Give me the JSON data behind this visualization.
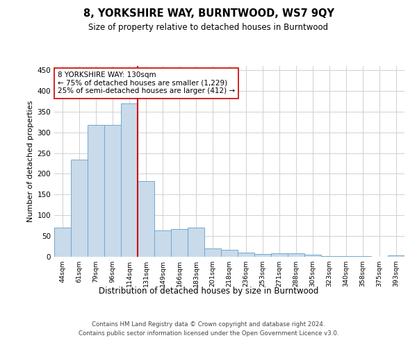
{
  "title1": "8, YORKSHIRE WAY, BURNTWOOD, WS7 9QY",
  "title2": "Size of property relative to detached houses in Burntwood",
  "xlabel": "Distribution of detached houses by size in Burntwood",
  "ylabel": "Number of detached properties",
  "categories": [
    "44sqm",
    "61sqm",
    "79sqm",
    "96sqm",
    "114sqm",
    "131sqm",
    "149sqm",
    "166sqm",
    "183sqm",
    "201sqm",
    "218sqm",
    "236sqm",
    "253sqm",
    "271sqm",
    "288sqm",
    "305sqm",
    "323sqm",
    "340sqm",
    "358sqm",
    "375sqm",
    "393sqm"
  ],
  "values": [
    70,
    235,
    317,
    317,
    370,
    183,
    63,
    67,
    70,
    20,
    16,
    10,
    6,
    9,
    9,
    5,
    2,
    2,
    1,
    0,
    3
  ],
  "bar_color": "#c9daea",
  "bar_edge_color": "#6fa8d0",
  "vline_x": 4.5,
  "vline_color": "#cc0000",
  "ylim": [
    0,
    460
  ],
  "yticks": [
    0,
    50,
    100,
    150,
    200,
    250,
    300,
    350,
    400,
    450
  ],
  "annotation_text": "8 YORKSHIRE WAY: 130sqm\n← 75% of detached houses are smaller (1,229)\n25% of semi-detached houses are larger (412) →",
  "annotation_box_color": "#ffffff",
  "annotation_box_edge_color": "#cc0000",
  "footer1": "Contains HM Land Registry data © Crown copyright and database right 2024.",
  "footer2": "Contains public sector information licensed under the Open Government Licence v3.0.",
  "background_color": "#ffffff",
  "grid_color": "#d0d0d0"
}
